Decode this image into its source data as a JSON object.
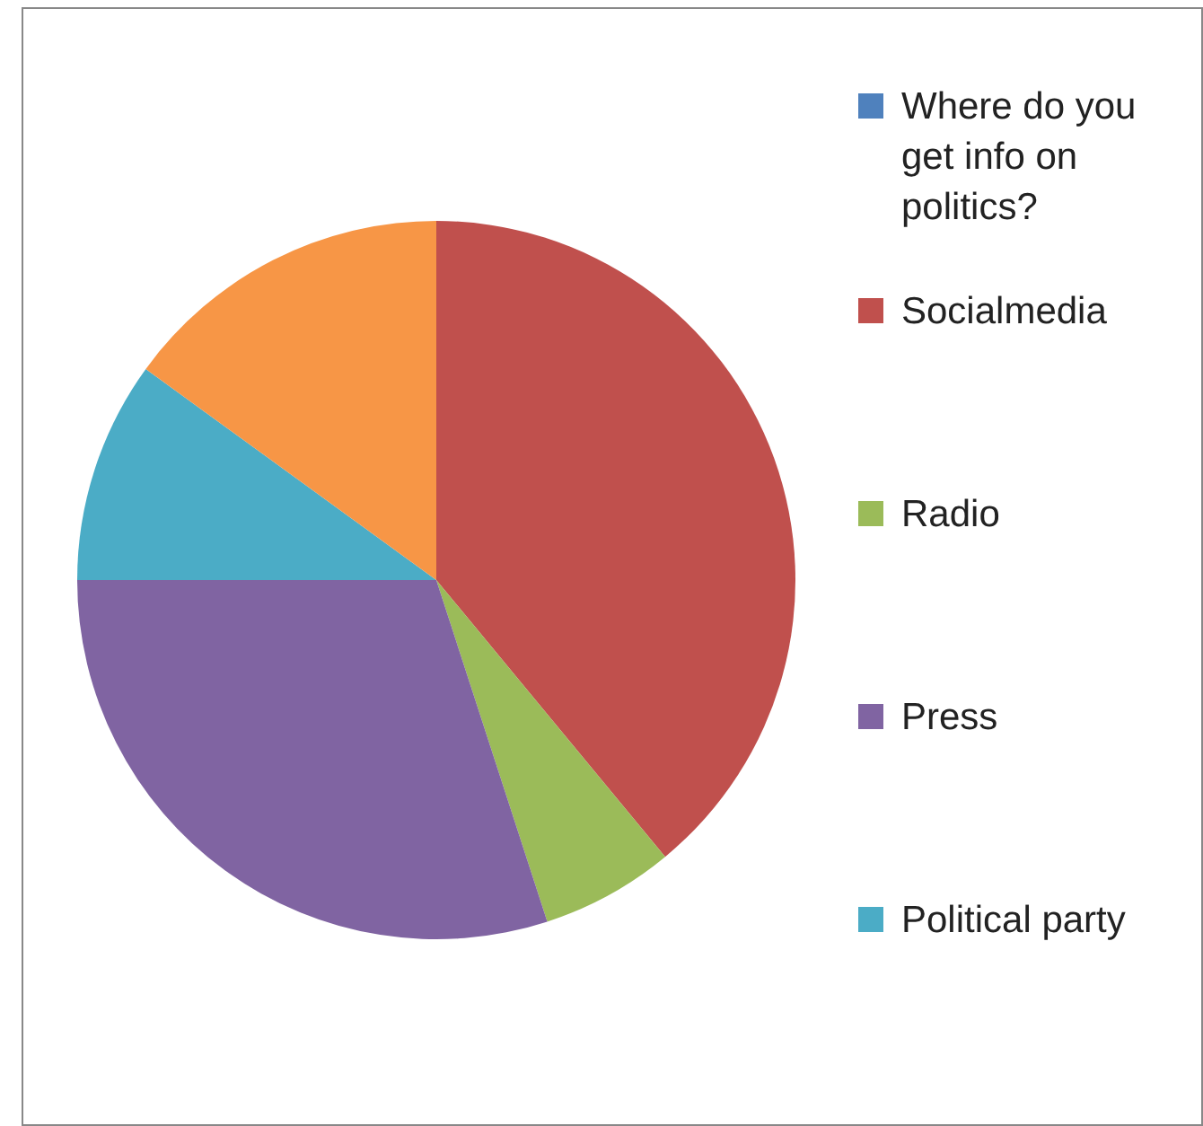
{
  "chart_data": {
    "type": "pie",
    "categories": [
      "Where do you get info on politics?",
      "Socialmedia",
      "Radio",
      "Press",
      "Political party",
      null
    ],
    "values": [
      0,
      39,
      6,
      30,
      10,
      15
    ],
    "colors": [
      "#4f81bd",
      "#c0504d",
      "#9bbb59",
      "#8064a2",
      "#4bacc6",
      "#f79646"
    ],
    "legend": "right"
  }
}
